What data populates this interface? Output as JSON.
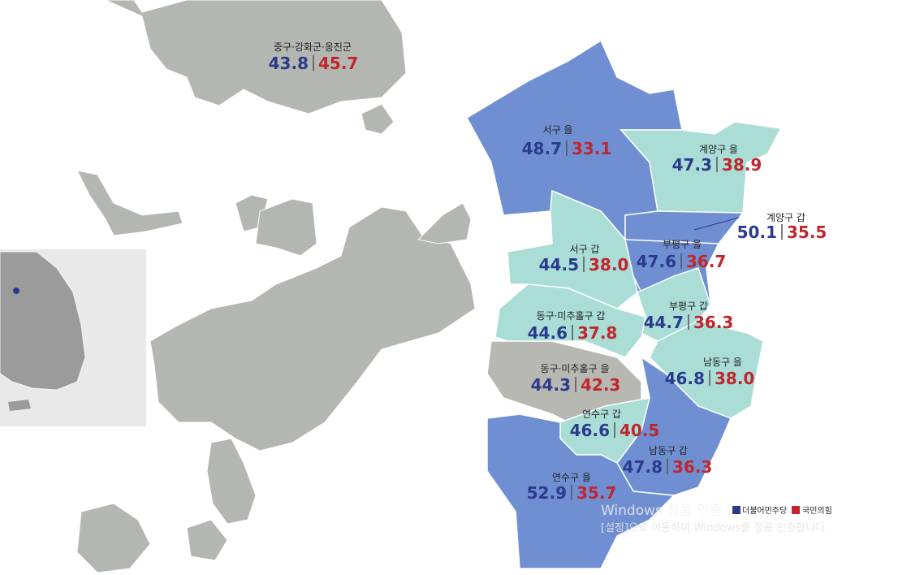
{
  "districts": [
    {
      "name": "중구·강화군·옹진군",
      "dem": "43.8",
      "ppp": "45.7"
    },
    {
      "name": "서구 을",
      "dem": "48.7",
      "ppp": "33.1"
    },
    {
      "name": "계양구 을",
      "dem": "47.3",
      "ppp": "38.9"
    },
    {
      "name": "계양구 갑",
      "dem": "50.1",
      "ppp": "35.5"
    },
    {
      "name": "서구 갑",
      "dem": "44.5",
      "ppp": "38.0"
    },
    {
      "name": "부평구 을",
      "dem": "47.6",
      "ppp": "36.7"
    },
    {
      "name": "동구·미추홀구 갑",
      "dem": "44.6",
      "ppp": "37.8"
    },
    {
      "name": "부평구 갑",
      "dem": "44.7",
      "ppp": "36.3"
    },
    {
      "name": "남동구 을",
      "dem": "46.8",
      "ppp": "38.0"
    },
    {
      "name": "동구·미추홀구 을",
      "dem": "44.3",
      "ppp": "42.3"
    },
    {
      "name": "연수구 갑",
      "dem": "46.6",
      "ppp": "40.5"
    },
    {
      "name": "남동구 갑",
      "dem": "47.8",
      "ppp": "36.3"
    },
    {
      "name": "연수구 을",
      "dem": "52.9",
      "ppp": "35.7"
    }
  ],
  "legend": [
    "더불어민주당",
    "국민의힘"
  ],
  "watermark": [
    "Windows 정품 인증",
    "[설정]으로 이동하여 Windows를 정품 인증합니다."
  ]
}
